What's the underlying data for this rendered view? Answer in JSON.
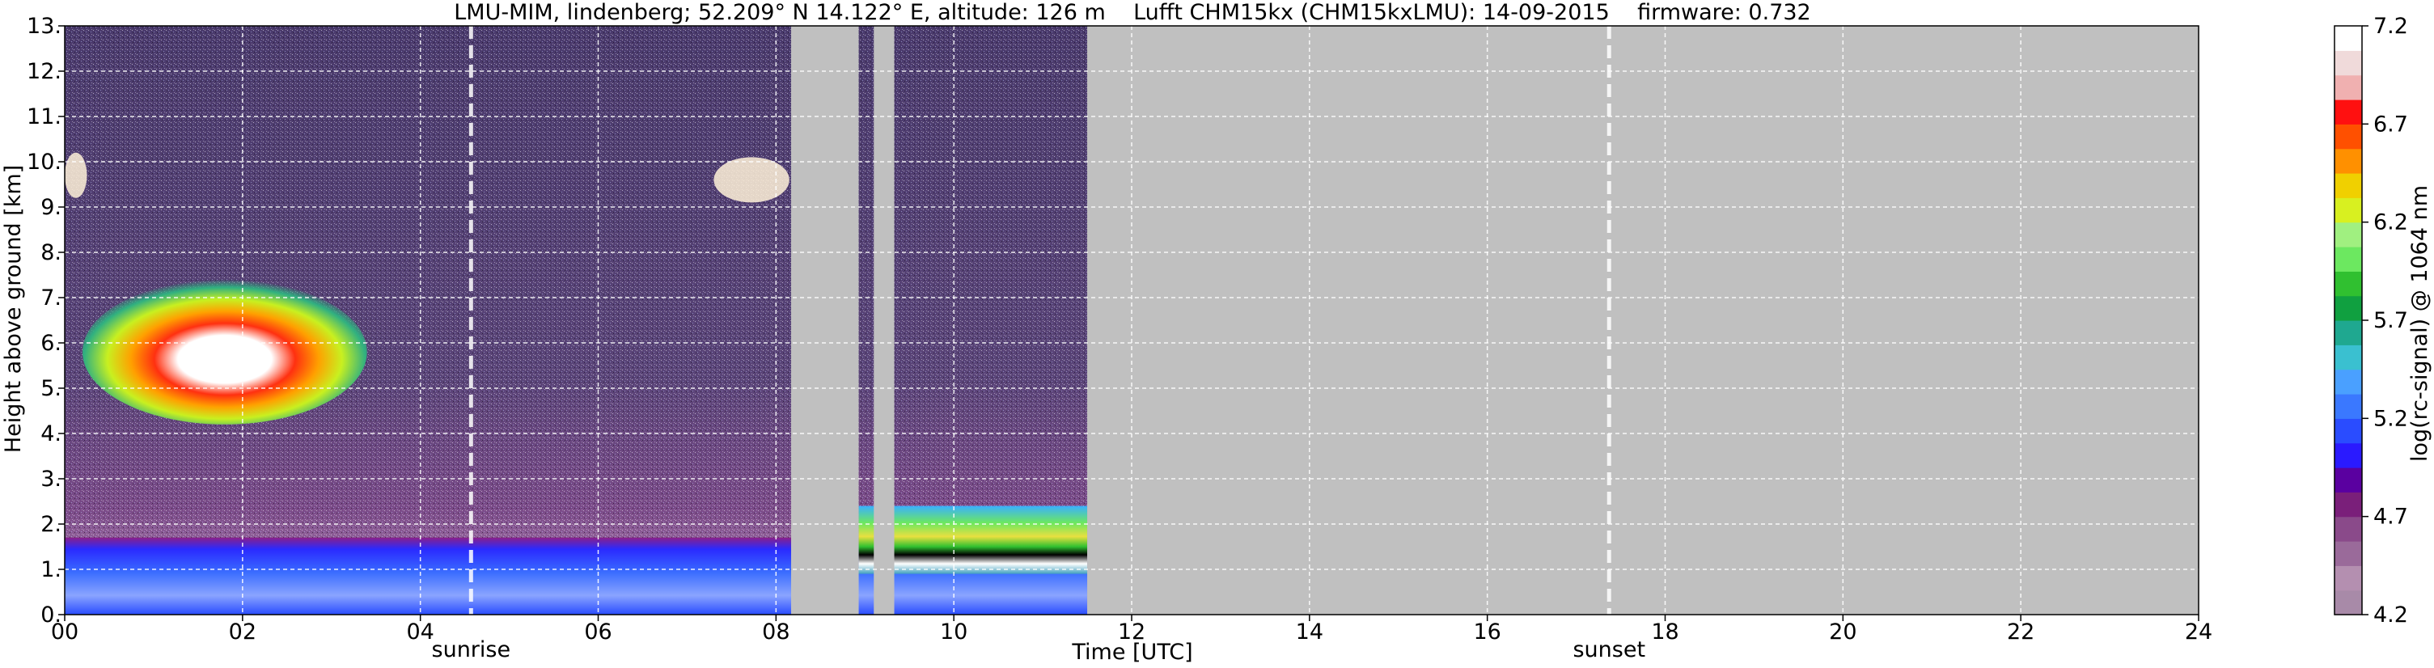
{
  "chart_data": {
    "type": "heatmap",
    "title": "LMU-MIM, lindenberg; 52.209° N 14.122° E, altitude: 126 m    Lufft CHM15kx (CHM15kxLMU): 14-09-2015    firmware: 0.732",
    "xlabel": "Time [UTC]",
    "ylabel": "Height above ground [km]",
    "xlim": [
      0,
      24
    ],
    "ylim": [
      0,
      13
    ],
    "x_ticks": [
      "00",
      "02",
      "04",
      "06",
      "08",
      "10",
      "12",
      "14",
      "16",
      "18",
      "20",
      "22",
      "24"
    ],
    "x_tick_values": [
      0,
      2,
      4,
      6,
      8,
      10,
      12,
      14,
      16,
      18,
      20,
      22,
      24
    ],
    "y_ticks": [
      "0.",
      "1.",
      "2.",
      "3.",
      "4.",
      "5.",
      "6.",
      "7.",
      "8.",
      "9.",
      "10.",
      "11.",
      "12.",
      "13."
    ],
    "y_tick_values": [
      0,
      1,
      2,
      3,
      4,
      5,
      6,
      7,
      8,
      9,
      10,
      11,
      12,
      13
    ],
    "grid": true,
    "annotations": [
      {
        "label": "sunrise",
        "x": 4.57
      },
      {
        "label": "sunset",
        "x": 17.37
      }
    ],
    "missing_data_intervals": [
      [
        8.17,
        8.93
      ],
      [
        9.1,
        9.33
      ],
      [
        11.5,
        24
      ]
    ],
    "features": [
      {
        "description": "boundary layer",
        "x_range": [
          0,
          11.5
        ],
        "y_range": [
          0,
          1.7
        ]
      },
      {
        "description": "mid-level cloud",
        "x_range": [
          0.2,
          3.4
        ],
        "y_range": [
          4.2,
          7.4
        ]
      },
      {
        "description": "cirrus",
        "x_range": [
          7.3,
          8.15
        ],
        "y_range": [
          9.1,
          10.1
        ]
      },
      {
        "description": "cirrus",
        "x_range": [
          0,
          0.25
        ],
        "y_range": [
          9.2,
          10.2
        ]
      },
      {
        "description": "low cloud layer",
        "x_range": [
          8.93,
          11.5
        ],
        "y_range": [
          0.9,
          2.4
        ]
      }
    ],
    "colorbar": {
      "label": "log(rc-signal) @ 1064 nm",
      "range": [
        4.2,
        7.2
      ],
      "ticks": [
        "4.2",
        "4.7",
        "5.2",
        "5.7",
        "6.2",
        "6.7",
        "7.2"
      ],
      "tick_values": [
        4.2,
        4.7,
        5.2,
        5.7,
        6.2,
        6.7,
        7.2
      ],
      "colors": [
        "#a88aa8",
        "#b48fb0",
        "#9a6a9a",
        "#8a4a8a",
        "#7a1f7a",
        "#5a00a0",
        "#2a1aff",
        "#2a4cff",
        "#3a78ff",
        "#4aa0ff",
        "#3ac0d0",
        "#1fa890",
        "#10a040",
        "#30c030",
        "#6ce860",
        "#a0f080",
        "#d8f020",
        "#f0d000",
        "#ff9000",
        "#ff5000",
        "#ff1010",
        "#f0b0b0",
        "#f0dada",
        "#ffffff"
      ]
    }
  }
}
